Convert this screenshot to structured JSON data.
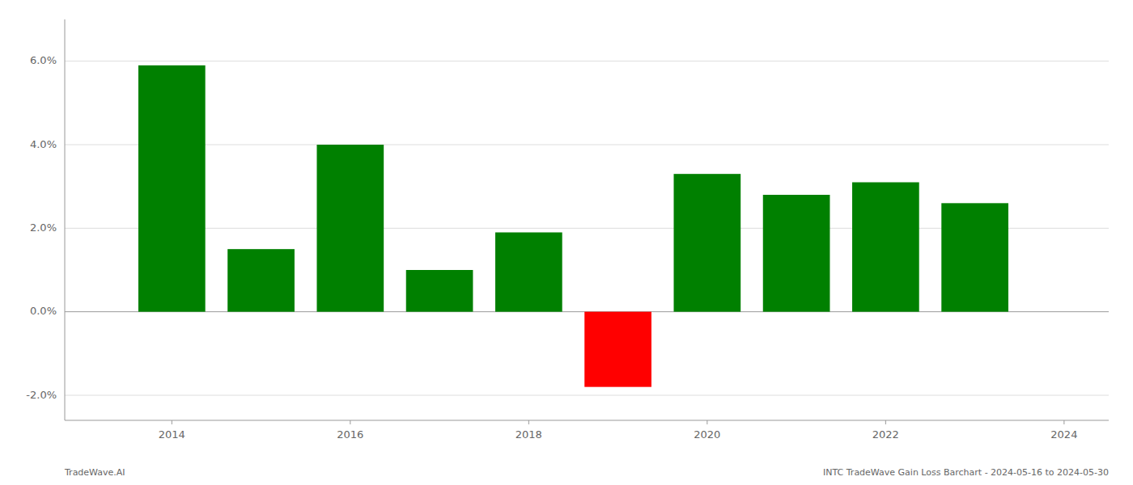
{
  "chart_data": {
    "type": "bar",
    "x": [
      2014,
      2015,
      2016,
      2017,
      2018,
      2019,
      2020,
      2021,
      2022,
      2023
    ],
    "values": [
      0.059,
      0.015,
      0.04,
      0.01,
      0.019,
      -0.018,
      0.033,
      0.028,
      0.031,
      0.026
    ],
    "colors": [
      "#008000",
      "#008000",
      "#008000",
      "#008000",
      "#008000",
      "#ff0000",
      "#008000",
      "#008000",
      "#008000",
      "#008000"
    ],
    "xlim": [
      2012.8,
      2024.5
    ],
    "xticks": [
      2014,
      2016,
      2018,
      2020,
      2022,
      2024
    ],
    "ylim": [
      -0.026,
      0.07
    ],
    "yticks": [
      {
        "value": -0.02,
        "label": "-2.0%"
      },
      {
        "value": 0.0,
        "label": "0.0%"
      },
      {
        "value": 0.02,
        "label": "2.0%"
      },
      {
        "value": 0.04,
        "label": "4.0%"
      },
      {
        "value": 0.06,
        "label": "6.0%"
      }
    ],
    "grid": true,
    "annotations": [
      "TradeWave.AI",
      "INTC TradeWave Gain Loss Barchart - 2024-05-16 to 2024-05-30"
    ]
  }
}
